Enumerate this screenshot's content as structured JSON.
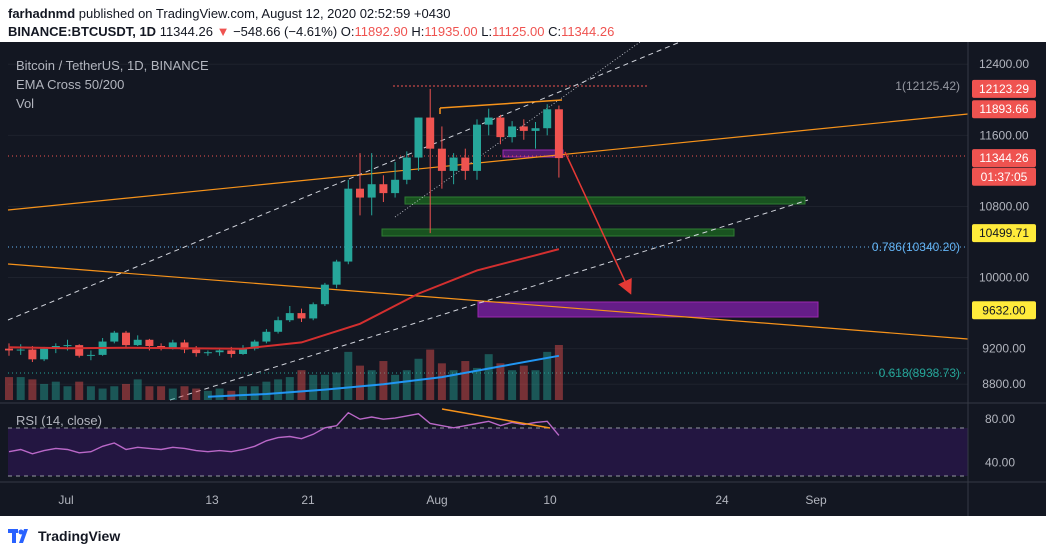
{
  "header": {
    "author": "farhadnmd",
    "published": "published on TradingView.com, August 12, 2020 02:52:59 +0430",
    "symbol": "BINANCE:BTCUSDT, 1D",
    "last": "11344.26",
    "change": "−548.66 (−4.61%)",
    "o_label": "O:",
    "o": "11892.90",
    "h_label": "H:",
    "h": "11935.00",
    "l_label": "L:",
    "l": "11125.00",
    "c_label": "C:",
    "c": "11344.26"
  },
  "legend": {
    "title": "Bitcoin / TetherUS, 1D, BINANCE",
    "ema": "EMA Cross 50/200",
    "vol": "Vol"
  },
  "rsi_label": "RSI (14, close)",
  "footer": {
    "brand": "TradingView"
  },
  "colors": {
    "up": "#26a69a",
    "down": "#ef5350",
    "ema50": "#d32f2f",
    "ema200": "#2196f3",
    "trend": "#f7931a",
    "zone_green": "#1b5e20",
    "zone_purple": "#7b1fa2",
    "arrow": "#e53935",
    "fib": "#64b5f6"
  },
  "chart_data": {
    "type": "candlestick",
    "title": "Bitcoin / TetherUS, 1D, BINANCE",
    "x_ticks": [
      "Jul",
      "13",
      "21",
      "Aug",
      "10",
      "24",
      "Sep"
    ],
    "y_ticks": [
      "12400.00",
      "11600.00",
      "10800.00",
      "10000.00",
      "9200.00",
      "8800.00"
    ],
    "ylim": [
      8600,
      12650
    ],
    "price_tags": [
      {
        "label": "12123.29",
        "price": 12123.29,
        "bg": "#ef5350",
        "fg": "#ffffff"
      },
      {
        "label": "11893.66",
        "price": 11893.66,
        "bg": "#ef5350",
        "fg": "#ffffff"
      },
      {
        "label": "11344.26",
        "price": 11344.26,
        "bg": "#ef5350",
        "fg": "#ffffff"
      },
      {
        "label": "01:37:05",
        "price": 11134,
        "bg": "#ef5350",
        "fg": "#ffffff"
      },
      {
        "label": "10499.71",
        "price": 10499.71,
        "bg": "#ffeb3b",
        "fg": "#131722"
      },
      {
        "label": "9632.00",
        "price": 9632.0,
        "bg": "#ffeb3b",
        "fg": "#131722"
      }
    ],
    "fib_levels": [
      {
        "label": "1(12125.42)",
        "price": 12125.42
      },
      {
        "label": "0.786(10340.20)",
        "price": 10340.2
      },
      {
        "label": "0.618(8938.73)",
        "price": 8938.73
      }
    ],
    "candles": [
      [
        9200,
        9260,
        9120,
        9180
      ],
      [
        9180,
        9250,
        9130,
        9190
      ],
      [
        9190,
        9230,
        9050,
        9080
      ],
      [
        9080,
        9220,
        9060,
        9200
      ],
      [
        9200,
        9260,
        9150,
        9230
      ],
      [
        9230,
        9300,
        9180,
        9240
      ],
      [
        9240,
        9250,
        9100,
        9120
      ],
      [
        9120,
        9180,
        9070,
        9130
      ],
      [
        9130,
        9320,
        9120,
        9280
      ],
      [
        9280,
        9400,
        9260,
        9380
      ],
      [
        9380,
        9400,
        9200,
        9240
      ],
      [
        9240,
        9350,
        9230,
        9300
      ],
      [
        9300,
        9310,
        9180,
        9230
      ],
      [
        9230,
        9260,
        9180,
        9200
      ],
      [
        9200,
        9300,
        9190,
        9270
      ],
      [
        9270,
        9300,
        9150,
        9190
      ],
      [
        9190,
        9230,
        9110,
        9150
      ],
      [
        9150,
        9180,
        9120,
        9160
      ],
      [
        9160,
        9210,
        9120,
        9180
      ],
      [
        9180,
        9220,
        9100,
        9140
      ],
      [
        9140,
        9240,
        9130,
        9200
      ],
      [
        9200,
        9300,
        9180,
        9280
      ],
      [
        9280,
        9420,
        9260,
        9390
      ],
      [
        9390,
        9560,
        9370,
        9520
      ],
      [
        9520,
        9680,
        9500,
        9600
      ],
      [
        9600,
        9650,
        9500,
        9540
      ],
      [
        9540,
        9720,
        9520,
        9700
      ],
      [
        9700,
        9940,
        9680,
        9920
      ],
      [
        9920,
        10200,
        9880,
        10180
      ],
      [
        10180,
        11100,
        10150,
        11000
      ],
      [
        11000,
        11400,
        10700,
        10900
      ],
      [
        10900,
        11400,
        10700,
        11050
      ],
      [
        11050,
        11150,
        10850,
        10950
      ],
      [
        10950,
        11300,
        10900,
        11100
      ],
      [
        11100,
        11420,
        11050,
        11350
      ],
      [
        11350,
        11800,
        11200,
        11800
      ],
      [
        11800,
        12123,
        10500,
        11450
      ],
      [
        11450,
        11700,
        11000,
        11200
      ],
      [
        11200,
        11400,
        11050,
        11350
      ],
      [
        11350,
        11450,
        11100,
        11200
      ],
      [
        11200,
        11780,
        11100,
        11720
      ],
      [
        11720,
        11900,
        11600,
        11800
      ],
      [
        11800,
        11830,
        11500,
        11580
      ],
      [
        11580,
        11760,
        11520,
        11700
      ],
      [
        11700,
        11780,
        11550,
        11650
      ],
      [
        11650,
        11750,
        11450,
        11680
      ],
      [
        11680,
        11950,
        11600,
        11893
      ],
      [
        11893,
        11935,
        11125,
        11344
      ]
    ],
    "volume": [
      1.0,
      1.0,
      0.9,
      0.7,
      0.8,
      0.6,
      0.8,
      0.6,
      0.5,
      0.6,
      0.7,
      0.9,
      0.6,
      0.6,
      0.5,
      0.6,
      0.5,
      0.4,
      0.5,
      0.4,
      0.6,
      0.6,
      0.8,
      0.9,
      1.0,
      1.3,
      1.1,
      1.1,
      1.2,
      2.1,
      1.5,
      1.3,
      1.7,
      1.1,
      1.3,
      1.8,
      2.2,
      1.6,
      1.3,
      1.7,
      1.4,
      2.0,
      1.6,
      1.3,
      1.5,
      1.3,
      2.1,
      2.4
    ],
    "ema50": [
      [
        0,
        9215
      ],
      [
        5,
        9205
      ],
      [
        10,
        9210
      ],
      [
        15,
        9205
      ],
      [
        20,
        9200
      ],
      [
        25,
        9270
      ],
      [
        30,
        9480
      ],
      [
        35,
        9820
      ],
      [
        40,
        10080
      ],
      [
        45,
        10250
      ],
      [
        47,
        10320
      ]
    ],
    "ema200": [
      [
        17,
        8660
      ],
      [
        22,
        8690
      ],
      [
        27,
        8740
      ],
      [
        32,
        8800
      ],
      [
        37,
        8880
      ],
      [
        42,
        9000
      ],
      [
        47,
        9120
      ]
    ],
    "rsi_ticks": [
      "80.00",
      "40.00"
    ],
    "rsi_ylim": [
      22,
      94
    ],
    "rsi": [
      50,
      52,
      48,
      51,
      53,
      52,
      49,
      50,
      55,
      58,
      52,
      54,
      53,
      52,
      54,
      53,
      51,
      50,
      51,
      50,
      52,
      55,
      60,
      63,
      64,
      62,
      66,
      72,
      74,
      86,
      80,
      82,
      80,
      81,
      83,
      85,
      76,
      74,
      72,
      74,
      76,
      78,
      74,
      77,
      75,
      77,
      78,
      65
    ]
  }
}
